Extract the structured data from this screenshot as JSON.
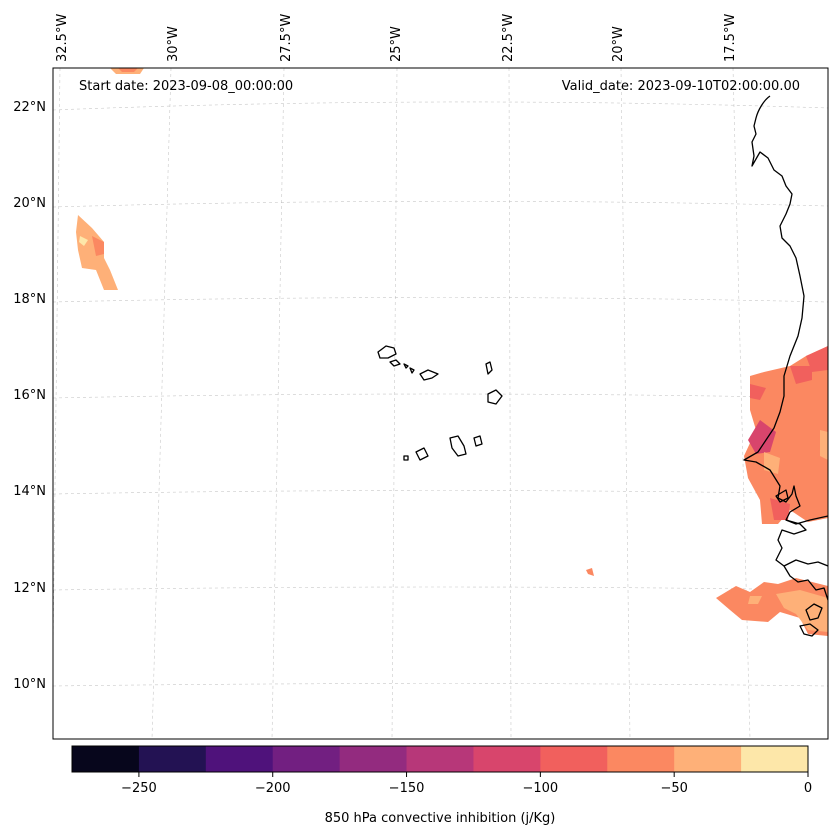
{
  "map": {
    "start_label": "Start date: 2023-09-08_00:00:00",
    "valid_label": "Valid_date: 2023-09-10T02:00:00.00",
    "colorbar_label": "850 hPa convective inhibition (j/Kg)",
    "lon_ticks": [
      "32.5°W",
      "30°W",
      "27.5°W",
      "25°W",
      "22.5°W",
      "20°W",
      "17.5°W"
    ],
    "lat_ticks": [
      "22°N",
      "20°N",
      "18°N",
      "16°N",
      "14°N",
      "12°N",
      "10°N"
    ],
    "colorbar_ticks": [
      "−250",
      "−200",
      "−150",
      "−100",
      "−50",
      "0"
    ],
    "colorbar_levels": [
      -275,
      -250,
      -225,
      -200,
      -175,
      -150,
      -125,
      -100,
      -75,
      -50,
      -25,
      0
    ],
    "colorbar_colors": [
      "#07061c",
      "#231253",
      "#4f127b",
      "#721f81",
      "#932b7f",
      "#b73779",
      "#d8456c",
      "#f1605d",
      "#fb8861",
      "#feb078",
      "#fde7a9"
    ],
    "features": [
      "coastline",
      "cape-verde-islands"
    ]
  }
}
